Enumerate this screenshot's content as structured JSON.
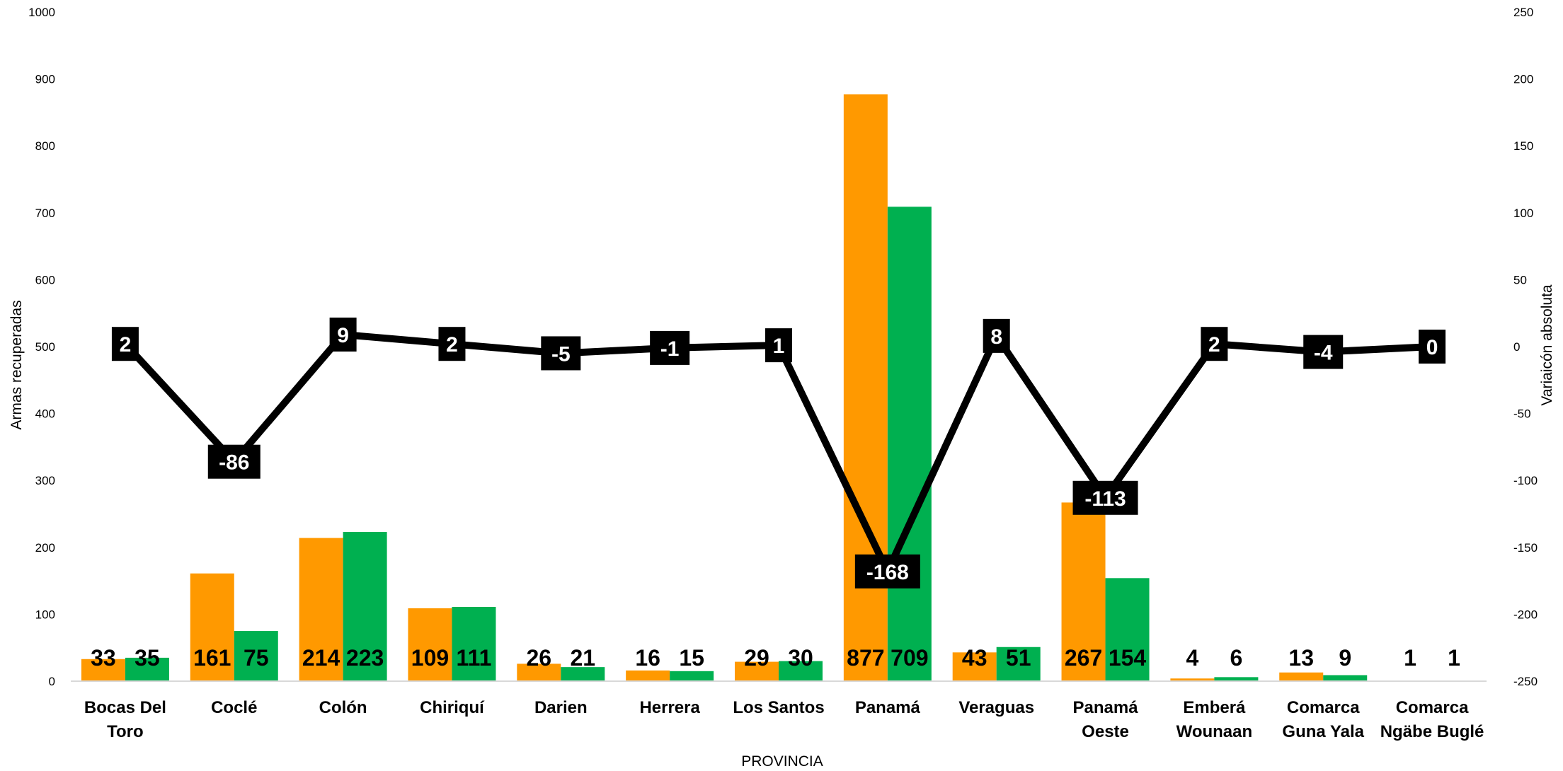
{
  "chart_data": {
    "type": "bar",
    "categories": [
      [
        "Bocas Del",
        "Toro"
      ],
      [
        "Coclé"
      ],
      [
        "Colón"
      ],
      [
        "Chiriquí"
      ],
      [
        "Darien"
      ],
      [
        "Herrera"
      ],
      [
        "Los Santos"
      ],
      [
        "Panamá"
      ],
      [
        "Veraguas"
      ],
      [
        "Panamá",
        "Oeste"
      ],
      [
        "Emberá",
        "Wounaan"
      ],
      [
        "Comarca",
        "Guna Yala"
      ],
      [
        "Comarca",
        "Ngäbe Buglé"
      ]
    ],
    "series": [
      {
        "values": [
          33,
          161,
          214,
          109,
          26,
          16,
          29,
          877,
          43,
          267,
          4,
          13,
          1
        ],
        "color": "#FF9900",
        "axis": "left"
      },
      {
        "values": [
          35,
          75,
          223,
          111,
          21,
          15,
          30,
          709,
          51,
          154,
          6,
          9,
          1
        ],
        "color": "#00B050",
        "axis": "left"
      },
      {
        "type": "line",
        "values": [
          2,
          -86,
          9,
          2,
          -5,
          -1,
          1,
          -168,
          8,
          -113,
          2,
          -4,
          0
        ],
        "color": "#000000",
        "axis": "right"
      }
    ],
    "xlabel": "PROVINCIA",
    "ylabel": "Armas recuperadas",
    "y2label": "Variaicón absoluta",
    "ylim": [
      0,
      1000
    ],
    "yticks": [
      0,
      100,
      200,
      300,
      400,
      500,
      600,
      700,
      800,
      900,
      1000
    ],
    "y2lim": [
      -250,
      250
    ],
    "y2ticks": [
      -250,
      -200,
      -150,
      -100,
      -50,
      0,
      50,
      100,
      150,
      200,
      250
    ],
    "grid": false,
    "legend": "none"
  }
}
